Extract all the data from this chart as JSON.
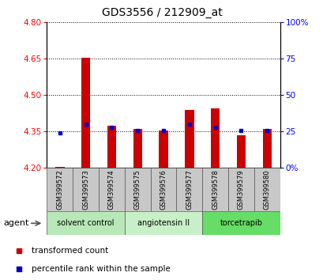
{
  "title": "GDS3556 / 212909_at",
  "samples": [
    "GSM399572",
    "GSM399573",
    "GSM399574",
    "GSM399575",
    "GSM399576",
    "GSM399577",
    "GSM399578",
    "GSM399579",
    "GSM399580"
  ],
  "red_values": [
    4.205,
    4.655,
    4.375,
    4.36,
    4.355,
    4.44,
    4.445,
    4.335,
    4.36
  ],
  "blue_values": [
    24,
    30,
    28,
    26,
    26,
    30,
    28,
    26,
    26
  ],
  "ylim_left": [
    4.2,
    4.8
  ],
  "ylim_right": [
    0,
    100
  ],
  "yticks_left": [
    4.2,
    4.35,
    4.5,
    4.65,
    4.8
  ],
  "yticks_right": [
    0,
    25,
    50,
    75,
    100
  ],
  "bar_bottom": 4.2,
  "groups": [
    {
      "label": "solvent control",
      "start": 0,
      "end": 3,
      "color": "#b8e8b8"
    },
    {
      "label": "angiotensin II",
      "start": 3,
      "end": 6,
      "color": "#c8f0c8"
    },
    {
      "label": "torcetrapib",
      "start": 6,
      "end": 9,
      "color": "#66dd66"
    }
  ],
  "bar_color": "#cc0000",
  "dot_color": "#0000cc",
  "bg_sample_row": "#c8c8c8",
  "agent_label": "agent",
  "legend_transformed": "transformed count",
  "legend_percentile": "percentile rank within the sample"
}
